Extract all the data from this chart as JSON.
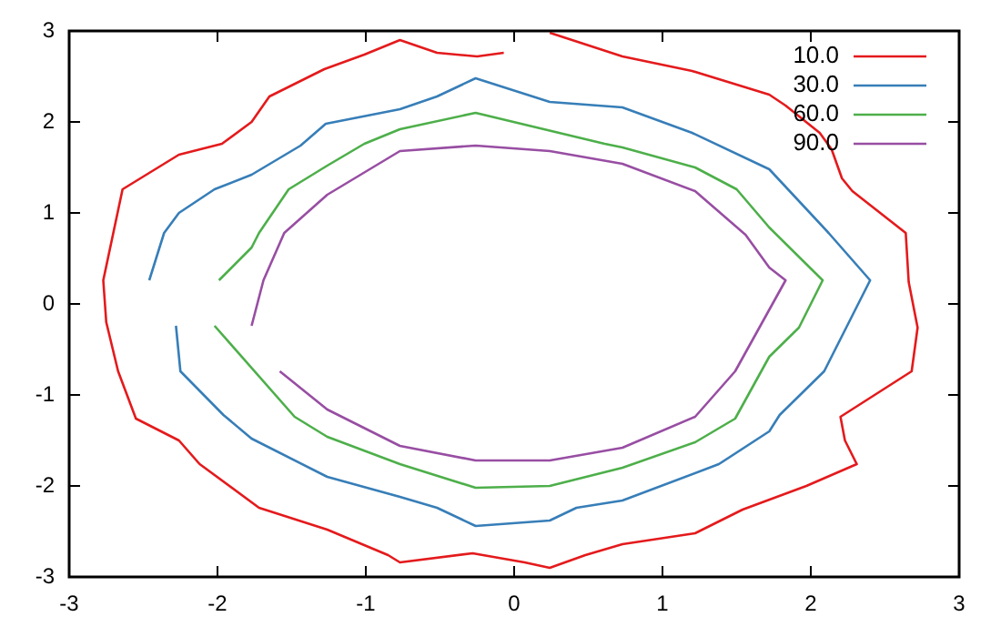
{
  "chart_data": {
    "type": "line",
    "xlim": [
      -3,
      3
    ],
    "ylim": [
      -3,
      3
    ],
    "xticks": [
      -3,
      -2,
      -1,
      0,
      1,
      2,
      3
    ],
    "yticks": [
      -3,
      -2,
      -1,
      0,
      1,
      2,
      3
    ],
    "grid": false,
    "legend": "top right",
    "marker": "none",
    "line_style": "solid",
    "series": [
      {
        "name": "10.0",
        "color": "#e41a1c",
        "x": [
          0.24,
          0.73,
          1.2,
          1.72,
          1.83,
          2.06,
          2.14,
          2.21,
          2.28,
          2.64,
          2.66,
          2.72,
          2.68,
          2.2,
          2.23,
          2.31,
          1.97,
          1.54,
          1.22,
          0.73,
          0.48,
          0.24,
          0.07,
          -0.28,
          -0.77,
          -0.85,
          -1.26,
          -1.72,
          -2.12,
          -2.26,
          -2.55,
          -2.67,
          -2.75,
          -2.77,
          -2.64,
          -2.26,
          -1.97,
          -1.77,
          -1.65,
          -1.28,
          -1.01,
          -0.77,
          -0.52,
          -0.25,
          -0.07
        ],
        "values": [
          2.98,
          2.72,
          2.56,
          2.3,
          2.18,
          1.88,
          1.7,
          1.38,
          1.24,
          0.78,
          0.24,
          -0.26,
          -0.74,
          -1.24,
          -1.5,
          -1.76,
          -2,
          -2.26,
          -2.52,
          -2.64,
          -2.76,
          -2.9,
          -2.84,
          -2.74,
          -2.84,
          -2.76,
          -2.48,
          -2.24,
          -1.76,
          -1.5,
          -1.26,
          -0.74,
          -0.2,
          0.26,
          1.26,
          1.64,
          1.76,
          2,
          2.28,
          2.58,
          2.74,
          2.9,
          2.76,
          2.72,
          2.76
        ]
      },
      {
        "name": "30.0",
        "color": "#377eb8",
        "x": [
          -2.46,
          -2.36,
          -2.26,
          -2.02,
          -1.77,
          -1.44,
          -1.27,
          -0.77,
          -0.52,
          -0.26,
          0.24,
          0.73,
          1.2,
          1.72,
          2.12,
          2.4,
          2.09,
          1.79,
          1.72,
          1.38,
          0.73,
          0.42,
          0.24,
          -0.26,
          -0.52,
          -0.77,
          -1.26,
          -1.77,
          -1.96,
          -2.25,
          -2.28
        ],
        "values": [
          0.26,
          0.78,
          1,
          1.26,
          1.42,
          1.74,
          1.98,
          2.14,
          2.28,
          2.48,
          2.22,
          2.16,
          1.88,
          1.48,
          0.78,
          0.26,
          -0.74,
          -1.22,
          -1.4,
          -1.76,
          -2.16,
          -2.24,
          -2.38,
          -2.44,
          -2.24,
          -2.12,
          -1.9,
          -1.48,
          -1.22,
          -0.74,
          -0.24
        ]
      },
      {
        "name": "60.0",
        "color": "#4daf4a",
        "x": [
          -1.99,
          -1.77,
          -1.72,
          -1.52,
          -1.26,
          -1.01,
          -0.77,
          -0.26,
          0.61,
          0.73,
          1.22,
          1.5,
          1.72,
          2.08,
          1.92,
          1.72,
          1.49,
          1.22,
          0.73,
          0.24,
          -0.26,
          -0.77,
          -1.26,
          -1.48,
          -2.02
        ],
        "values": [
          0.26,
          0.62,
          0.78,
          1.26,
          1.52,
          1.76,
          1.92,
          2.1,
          1.76,
          1.72,
          1.5,
          1.26,
          0.84,
          0.26,
          -0.26,
          -0.58,
          -1.26,
          -1.52,
          -1.8,
          -2,
          -2.02,
          -1.76,
          -1.46,
          -1.24,
          -0.24
        ]
      },
      {
        "name": "90.0",
        "color": "#984ea3",
        "x": [
          -1.77,
          -1.69,
          -1.55,
          -1.26,
          -0.77,
          -0.26,
          0.24,
          0.73,
          1.22,
          1.56,
          1.72,
          1.83,
          1.66,
          1.49,
          1.22,
          0.73,
          0.24,
          -0.26,
          -0.77,
          -1.26,
          -1.58
        ],
        "values": [
          -0.24,
          0.26,
          0.78,
          1.2,
          1.68,
          1.74,
          1.68,
          1.54,
          1.24,
          0.76,
          0.4,
          0.26,
          -0.24,
          -0.74,
          -1.24,
          -1.58,
          -1.72,
          -1.72,
          -1.56,
          -1.16,
          -0.74
        ]
      }
    ]
  }
}
